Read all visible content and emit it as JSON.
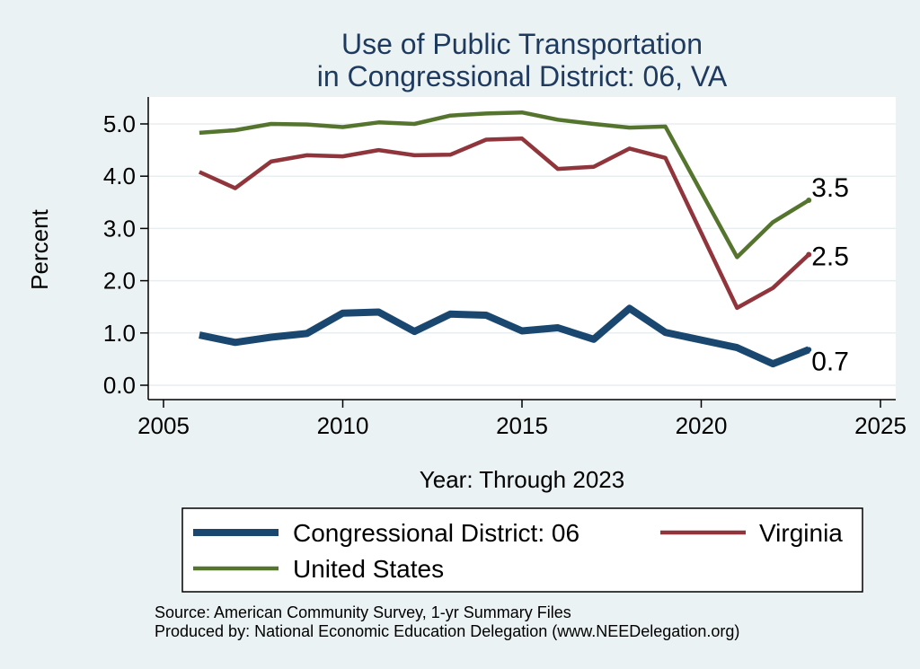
{
  "chart_data": {
    "type": "line",
    "title_lines": [
      "Use of Public Transportation",
      "in Congressional District: 06, VA"
    ],
    "xlabel": "Year: Through 2023",
    "ylabel": "Percent",
    "xlim": [
      2005,
      2025
    ],
    "ylim": [
      0,
      5.4
    ],
    "x_ticks": [
      2005,
      2010,
      2015,
      2020,
      2025
    ],
    "y_ticks": [
      0.0,
      1.0,
      2.0,
      3.0,
      4.0,
      5.0
    ],
    "y_tick_labels": [
      "0.0",
      "1.0",
      "2.0",
      "3.0",
      "4.0",
      "5.0"
    ],
    "grid": true,
    "legend_position": "bottom",
    "x": [
      2006,
      2007,
      2008,
      2009,
      2010,
      2011,
      2012,
      2013,
      2014,
      2015,
      2016,
      2017,
      2018,
      2019,
      2021,
      2022,
      2023
    ],
    "series": [
      {
        "name": "Congressional District: 06",
        "color": "#1a476f",
        "values": [
          0.96,
          0.82,
          0.92,
          0.99,
          1.38,
          1.4,
          1.03,
          1.36,
          1.34,
          1.04,
          1.1,
          0.88,
          1.47,
          1.01,
          0.72,
          0.41,
          0.68
        ],
        "end_label": "0.7"
      },
      {
        "name": "Virginia",
        "color": "#90353b",
        "values": [
          4.08,
          3.77,
          4.28,
          4.4,
          4.38,
          4.5,
          4.4,
          4.41,
          4.7,
          4.72,
          4.14,
          4.18,
          4.53,
          4.35,
          1.48,
          1.86,
          2.5
        ],
        "end_label": "2.5"
      },
      {
        "name": "United States",
        "color": "#55752f",
        "values": [
          4.83,
          4.88,
          5.0,
          4.99,
          4.94,
          5.03,
          5.0,
          5.16,
          5.2,
          5.22,
          5.08,
          5.0,
          4.93,
          4.95,
          2.45,
          3.12,
          3.54
        ],
        "end_label": "3.5"
      }
    ]
  },
  "footer": {
    "source": "Source: American Community Survey, 1-yr Summary Files",
    "produced": "Produced by: National Economic Education Delegation (www.NEEDelegation.org)"
  }
}
